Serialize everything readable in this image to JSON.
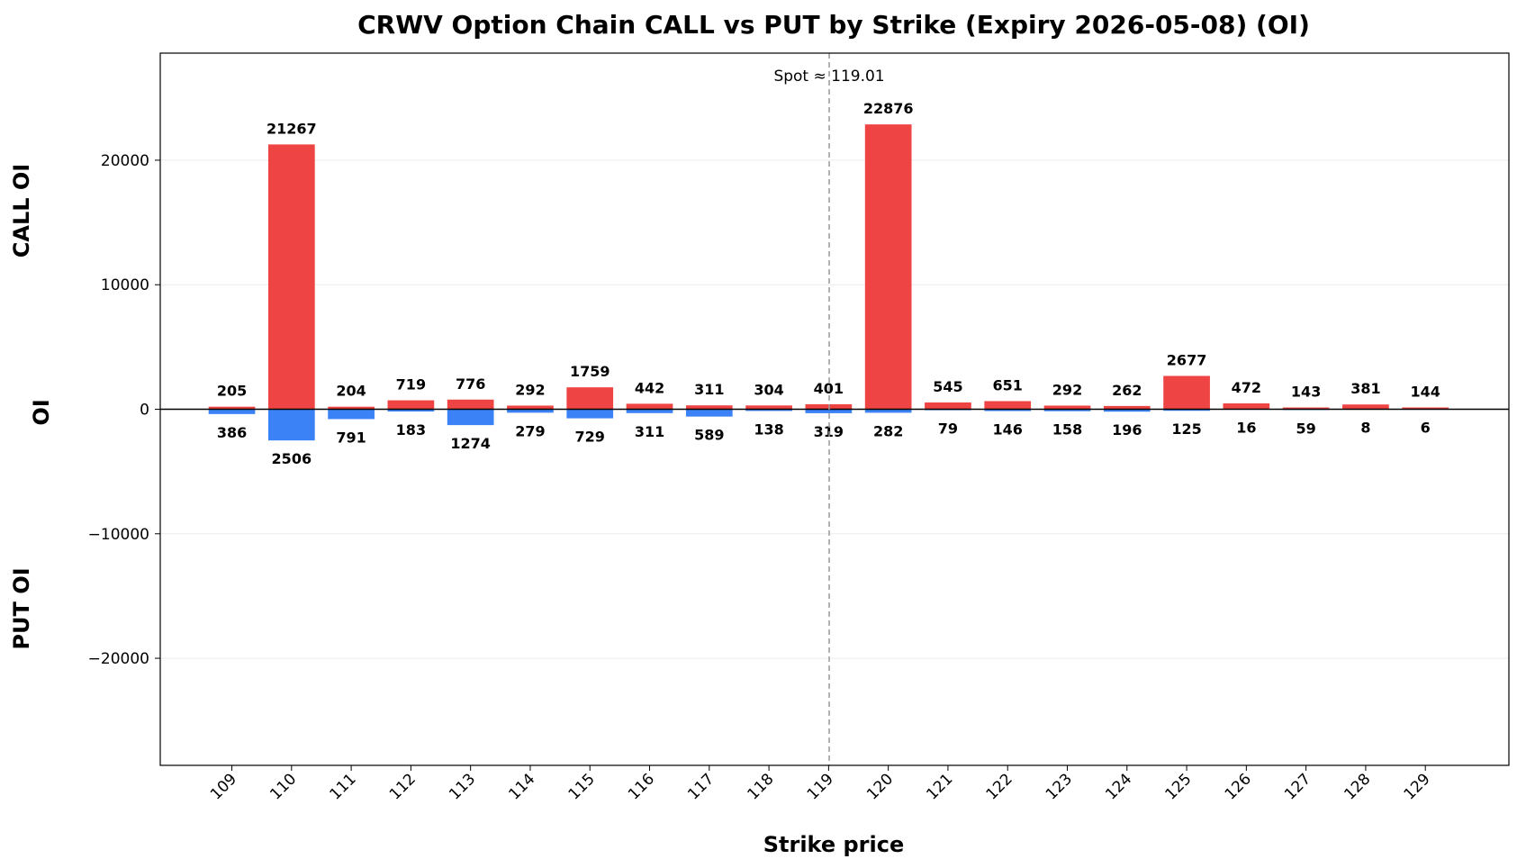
{
  "chart_data": {
    "type": "bar",
    "title": "CRWV Option Chain CALL vs PUT by Strike (Expiry 2026-05-08) (OI)",
    "xlabel": "Strike price",
    "ylabel": "OI",
    "ylabel_top": "CALL OI",
    "ylabel_bottom": "PUT OI",
    "categories": [
      "109",
      "110",
      "111",
      "112",
      "113",
      "114",
      "115",
      "116",
      "117",
      "118",
      "119",
      "120",
      "121",
      "122",
      "123",
      "124",
      "125",
      "126",
      "127",
      "128",
      "129"
    ],
    "series": [
      {
        "name": "CALL",
        "color": "#ef4444",
        "values": [
          205,
          21267,
          204,
          719,
          776,
          292,
          1759,
          442,
          311,
          304,
          401,
          22876,
          545,
          651,
          292,
          262,
          2677,
          472,
          143,
          381,
          144
        ]
      },
      {
        "name": "PUT",
        "color": "#3b82f6",
        "values": [
          386,
          2506,
          791,
          183,
          1274,
          279,
          729,
          311,
          589,
          138,
          319,
          282,
          79,
          146,
          158,
          196,
          125,
          16,
          59,
          8,
          6
        ]
      }
    ],
    "yticks": [
      20000,
      10000,
      0,
      -10000,
      -20000
    ],
    "ytick_labels": [
      "20000",
      "10000",
      "0",
      "−10000",
      "−20000"
    ],
    "ylim": [
      -28600,
      28600
    ],
    "spot": {
      "value": 119.01,
      "label": "Spot ≈ 119.01"
    },
    "grid": true,
    "legend": "none"
  }
}
